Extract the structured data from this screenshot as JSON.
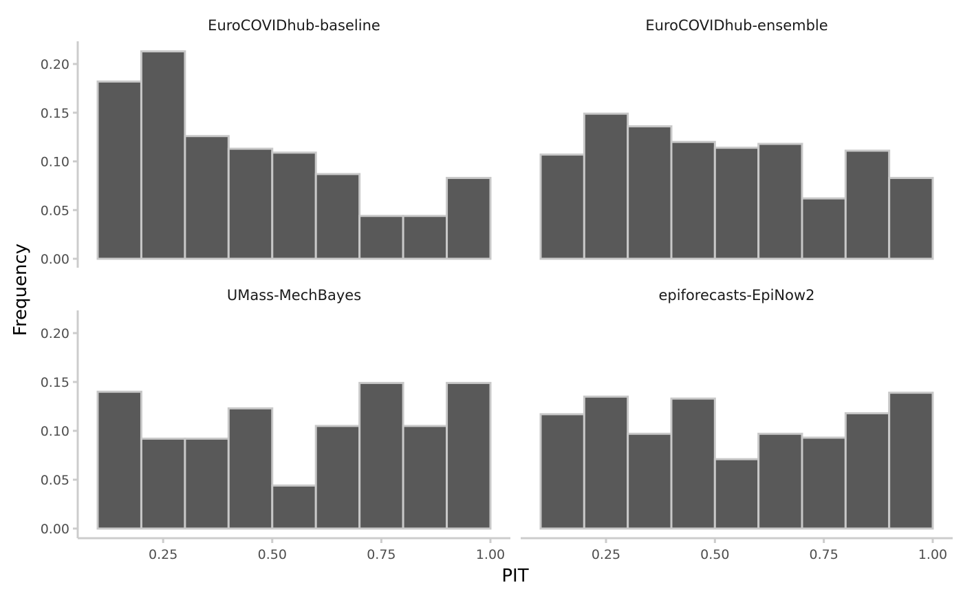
{
  "chart_data": {
    "type": "bar",
    "xlabel": "PIT",
    "ylabel": "Frequency",
    "xlim": [
      0.1,
      1.0
    ],
    "ylim": [
      0,
      0.22
    ],
    "x_ticks": [
      "0.25",
      "0.50",
      "0.75",
      "1.00"
    ],
    "x_tick_values": [
      0.25,
      0.5,
      0.75,
      1.0
    ],
    "y_ticks": [
      "0.00",
      "0.05",
      "0.10",
      "0.15",
      "0.20"
    ],
    "y_tick_values": [
      0,
      0.05,
      0.1,
      0.15,
      0.2
    ],
    "bin_edges": [
      0.1,
      0.2,
      0.3,
      0.4,
      0.5,
      0.6,
      0.7,
      0.8,
      0.9,
      1.0
    ],
    "colors": {
      "bar_fill": "#595959",
      "bar_outline": "#c8c8c8",
      "axis": "#cccccc"
    },
    "grid": false,
    "facets": [
      {
        "title": "EuroCOVIDhub-baseline",
        "values": [
          0.182,
          0.213,
          0.126,
          0.113,
          0.109,
          0.087,
          0.044,
          0.044,
          0.083
        ]
      },
      {
        "title": "EuroCOVIDhub-ensemble",
        "values": [
          0.107,
          0.149,
          0.136,
          0.12,
          0.114,
          0.118,
          0.062,
          0.111,
          0.083
        ]
      },
      {
        "title": "UMass-MechBayes",
        "values": [
          0.14,
          0.092,
          0.092,
          0.123,
          0.044,
          0.105,
          0.149,
          0.105,
          0.149
        ]
      },
      {
        "title": "epiforecasts-EpiNow2",
        "values": [
          0.117,
          0.135,
          0.097,
          0.133,
          0.071,
          0.097,
          0.093,
          0.118,
          0.139
        ]
      }
    ]
  }
}
